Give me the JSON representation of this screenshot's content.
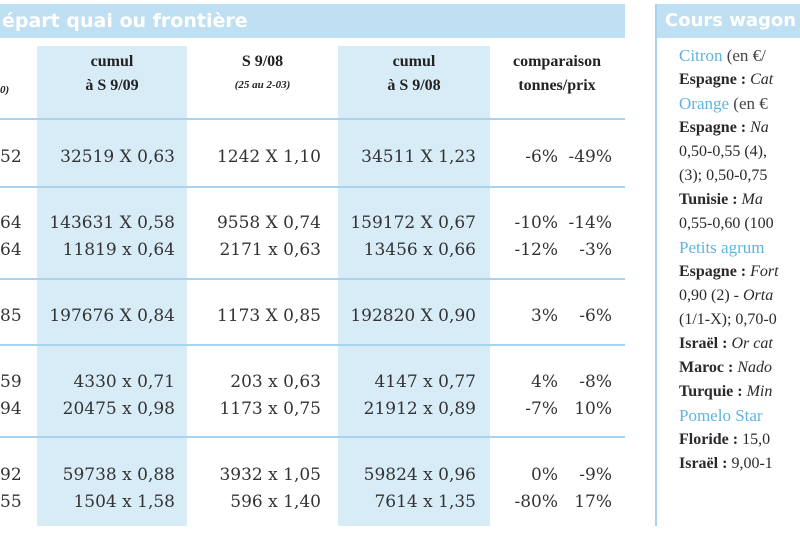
{
  "left": {
    "header": "épart quai ou frontière",
    "col0_fragment": "0)",
    "columns": [
      {
        "line1": "cumul",
        "line2": "à S 9/09"
      },
      {
        "line1": "S 9/08",
        "sub": "(25 au 2-03)"
      },
      {
        "line1": "cumul",
        "line2": "à S 9/08"
      },
      {
        "line1": "comparaison",
        "line2": "tonnes/prix"
      }
    ],
    "rows": [
      {
        "c0": "52",
        "c1": "32519 X 0,63",
        "c2": "1242 X 1,10",
        "c3": "34511 X 1,23",
        "c4": "-6%",
        "c5": "-49%"
      },
      {
        "c0": "64",
        "c1": "143631 X 0,58",
        "c2": "9558 X 0,74",
        "c3": "159172 X 0,67",
        "c4": "-10%",
        "c5": "-14%"
      },
      {
        "c0": "64",
        "c1": "11819 x 0,64",
        "c2": "2171 x 0,63",
        "c3": "13456 x 0,66",
        "c4": "-12%",
        "c5": "-3%"
      },
      {
        "c0": "85",
        "c1": "197676 X 0,84",
        "c2": "1173 X 0,85",
        "c3": "192820 X 0,90",
        "c4": "3%",
        "c5": "-6%"
      },
      {
        "c0": "59",
        "c1": "4330 x 0,71",
        "c2": "203 x 0,63",
        "c3": "4147 x 0,77",
        "c4": "4%",
        "c5": "-8%"
      },
      {
        "c0": "94",
        "c1": "20475 x 0,98",
        "c2": "1173 x 0,75",
        "c3": "21912 x 0,89",
        "c4": "-7%",
        "c5": "10%"
      },
      {
        "c0": "92",
        "c1": "59738 x 0,88",
        "c2": "3932 x 1,05",
        "c3": "59824 x 0,96",
        "c4": "0%",
        "c5": "-9%"
      },
      {
        "c0": "55",
        "c1": "1504 x 1,58",
        "c2": "596 x 1,40",
        "c3": "7614 x 1,35",
        "c4": "-80%",
        "c5": "17%"
      }
    ]
  },
  "right": {
    "header": "Cours wagon",
    "lines": [
      {
        "t1": "Citron",
        "t2": " (en €/"
      },
      {
        "b": "Espagne : ",
        "i": "Cat"
      },
      {
        "t1": "Orange",
        "t2": " (en €"
      },
      {
        "b": "Espagne : ",
        "i": "Na"
      },
      {
        "p": "0,50-0,55 (4), "
      },
      {
        "p": "(3); 0,50-0,75"
      },
      {
        "b": "Tunisie : ",
        "i": "Ma"
      },
      {
        "p": "0,55-0,60 (100"
      },
      {
        "t1": "Petits agrum",
        "t2": ""
      },
      {
        "b": "Espagne : ",
        "i": "Fort"
      },
      {
        "p": "0,90 (2) - ",
        "i": "Orta"
      },
      {
        "p": "(1/1-X); 0,70-0"
      },
      {
        "b": "Israël : ",
        "i": "Or cat"
      },
      {
        "b": "Maroc : ",
        "i": "Nado"
      },
      {
        "b": "Turquie : ",
        "i": "Min"
      },
      {
        "t1": "Pomelo Star",
        "t2": ""
      },
      {
        "b": "Floride : ",
        "p": "15,0"
      },
      {
        "b": "Israël : ",
        "p": "9,00-1"
      }
    ]
  }
}
